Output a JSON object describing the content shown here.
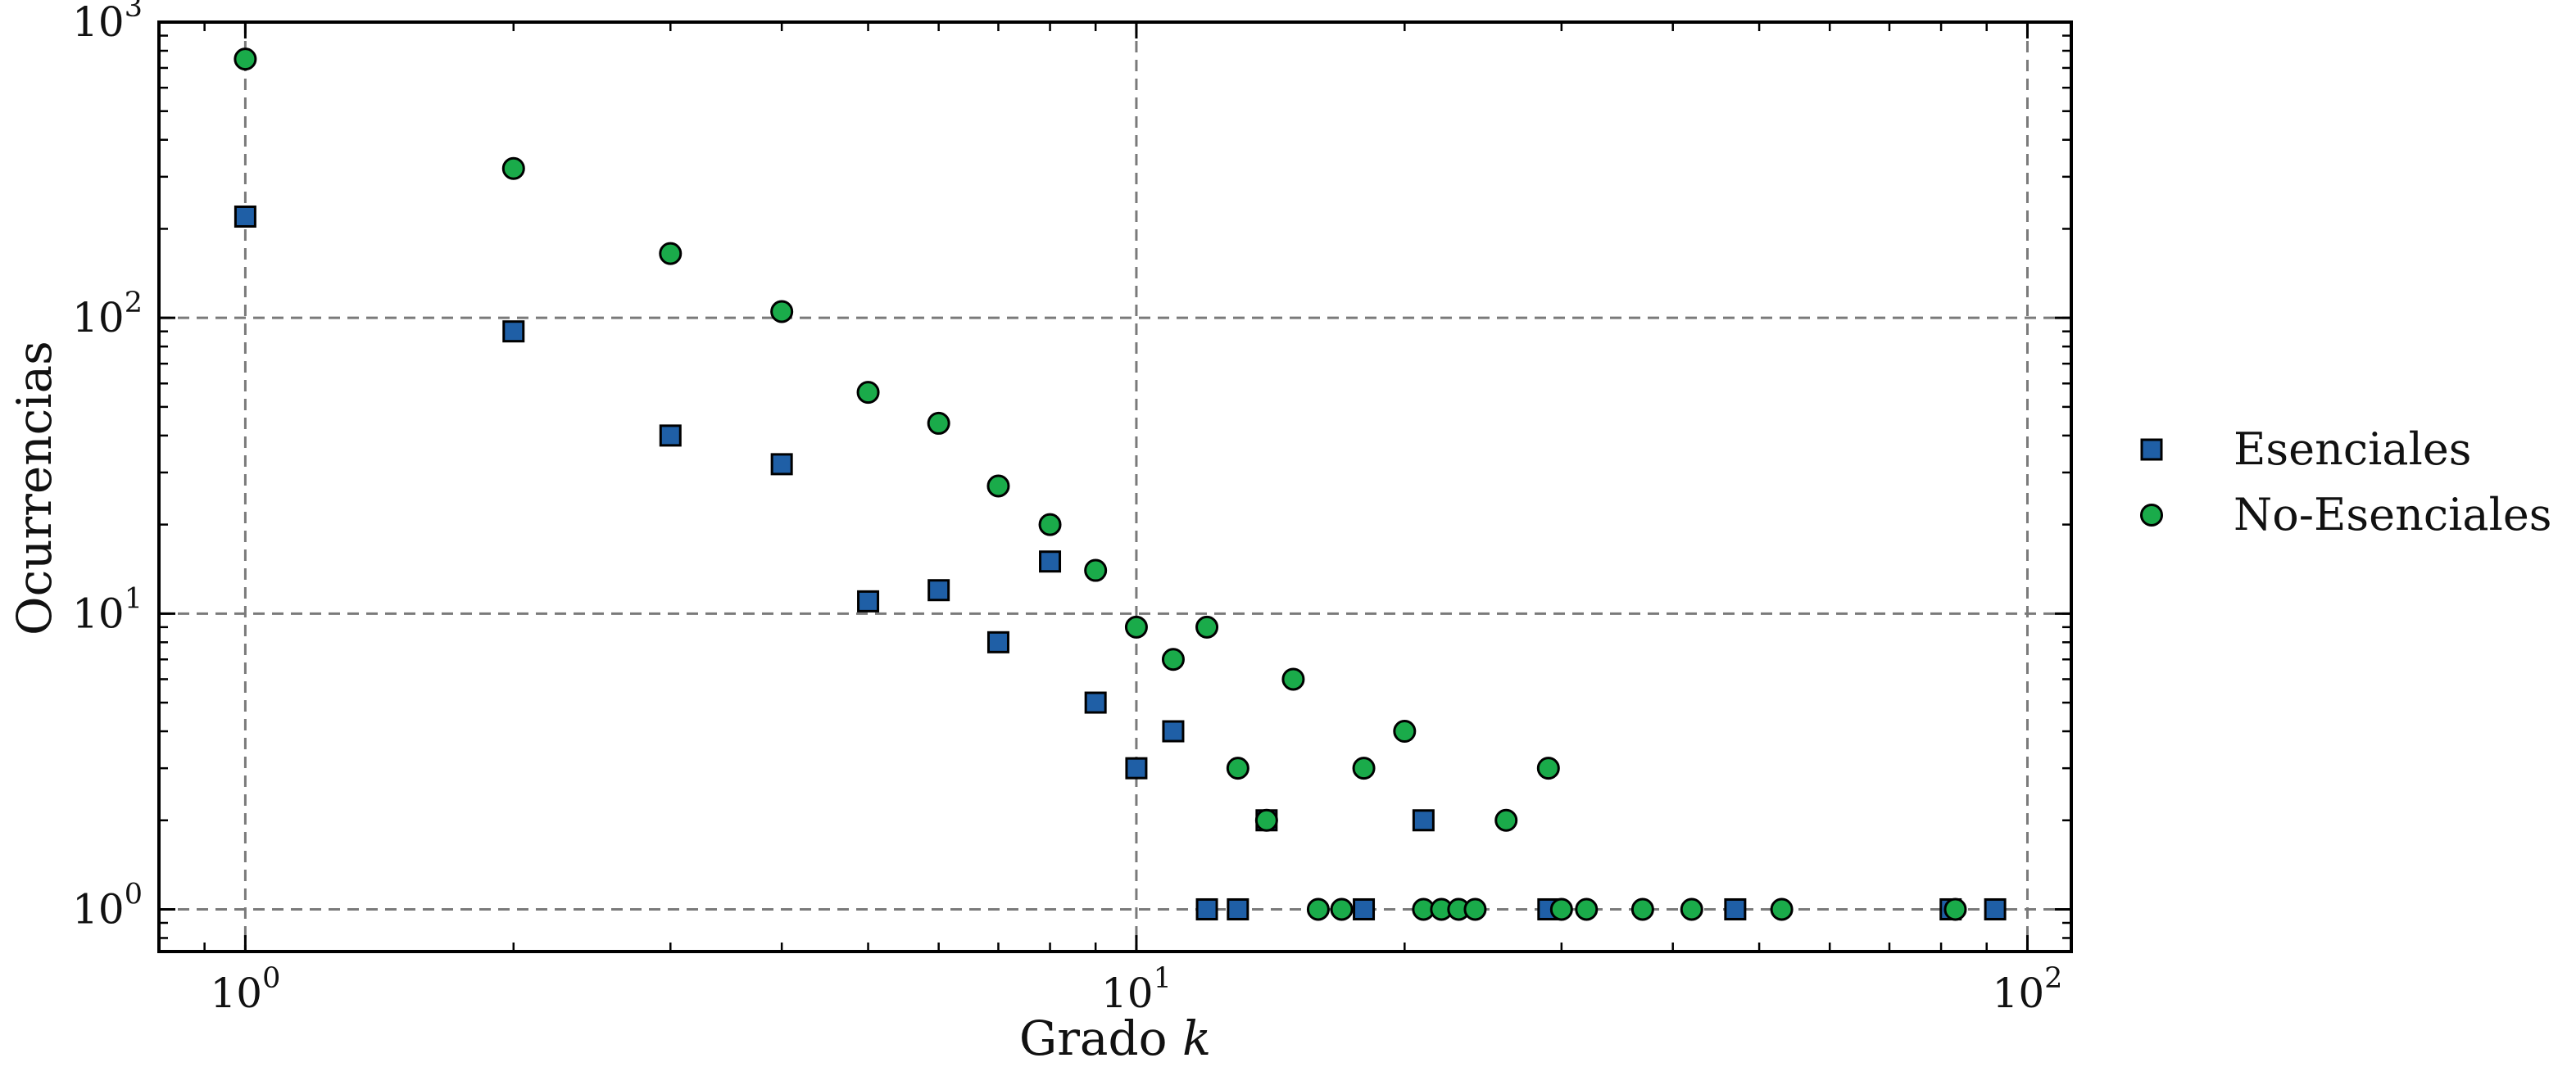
{
  "chart_data": {
    "type": "scatter",
    "title": "",
    "xlabel": "Grado",
    "xlabel_var": "k",
    "ylabel": "Ocurrencias",
    "xscale": "log",
    "yscale": "log",
    "xlim": [
      0.8,
      112
    ],
    "ylim": [
      0.72,
      1000
    ],
    "grid": true,
    "legend_position": "right, outside plot",
    "x_ticks": [
      {
        "base": "10",
        "exp": "0",
        "value": 1
      },
      {
        "base": "10",
        "exp": "1",
        "value": 10
      },
      {
        "base": "10",
        "exp": "2",
        "value": 100
      }
    ],
    "y_ticks": [
      {
        "base": "10",
        "exp": "0",
        "value": 1
      },
      {
        "base": "10",
        "exp": "1",
        "value": 10
      },
      {
        "base": "10",
        "exp": "2",
        "value": 100
      },
      {
        "base": "10",
        "exp": "3",
        "value": 1000
      }
    ],
    "series": [
      {
        "name": "Esenciales",
        "marker": "square",
        "color": "#1f5fa6",
        "points": [
          [
            1,
            220
          ],
          [
            2,
            90
          ],
          [
            3,
            40
          ],
          [
            4,
            32
          ],
          [
            5,
            11
          ],
          [
            6,
            12
          ],
          [
            7,
            8
          ],
          [
            8,
            15
          ],
          [
            9,
            5
          ],
          [
            10,
            3
          ],
          [
            11,
            4
          ],
          [
            12,
            1
          ],
          [
            13,
            1
          ],
          [
            14,
            2
          ],
          [
            18,
            1
          ],
          [
            21,
            2
          ],
          [
            29,
            1
          ],
          [
            47,
            1
          ],
          [
            82,
            1
          ],
          [
            92,
            1
          ]
        ]
      },
      {
        "name": "No-Esenciales",
        "marker": "circle",
        "color": "#1aab4a",
        "points": [
          [
            1,
            750
          ],
          [
            2,
            320
          ],
          [
            3,
            165
          ],
          [
            4,
            105
          ],
          [
            5,
            56
          ],
          [
            6,
            44
          ],
          [
            7,
            27
          ],
          [
            8,
            20
          ],
          [
            9,
            14
          ],
          [
            10,
            9
          ],
          [
            11,
            7
          ],
          [
            12,
            9
          ],
          [
            13,
            3
          ],
          [
            14,
            2
          ],
          [
            15,
            6
          ],
          [
            16,
            1
          ],
          [
            17,
            1
          ],
          [
            18,
            3
          ],
          [
            20,
            4
          ],
          [
            21,
            1
          ],
          [
            22,
            1
          ],
          [
            23,
            1
          ],
          [
            24,
            1
          ],
          [
            26,
            2
          ],
          [
            29,
            3
          ],
          [
            30,
            1
          ],
          [
            32,
            1
          ],
          [
            37,
            1
          ],
          [
            42,
            1
          ],
          [
            53,
            1
          ],
          [
            83,
            1
          ]
        ]
      }
    ]
  }
}
